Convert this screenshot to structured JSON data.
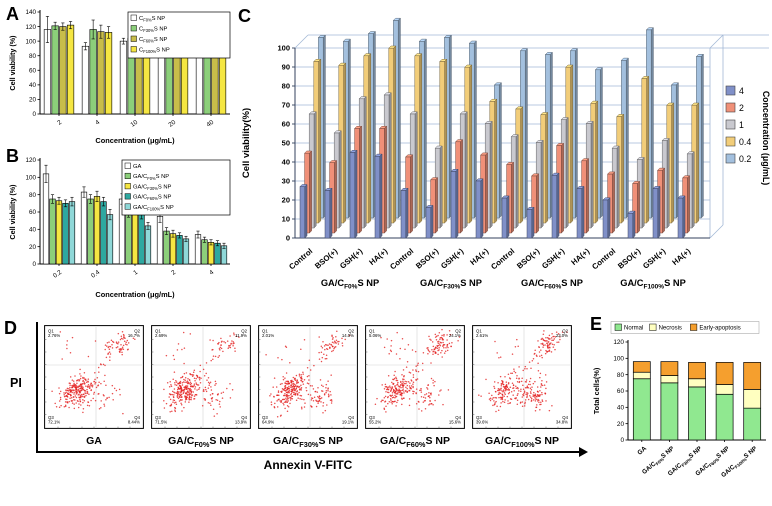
{
  "figure": {
    "background": "#ffffff"
  },
  "chart_data": [
    {
      "panel": "A",
      "type": "bar",
      "xlabel": "Concentration (μg/mL)",
      "ylabel": "Cell viability (%)",
      "ylim": [
        0,
        140
      ],
      "ystep": 20,
      "categories": [
        "2",
        "4",
        "10",
        "20",
        "40"
      ],
      "series": [
        {
          "name": "C~F0%~S NP",
          "color": "#ffffff",
          "values": [
            116,
            93,
            100,
            97,
            87
          ],
          "errors": [
            18,
            5,
            4,
            4,
            4
          ]
        },
        {
          "name": "C~F30%~S NP",
          "color": "#8ccf7a",
          "values": [
            121,
            116,
            104,
            99,
            92
          ],
          "errors": [
            5,
            13,
            6,
            4,
            9
          ]
        },
        {
          "name": "C~F60%~S NP",
          "color": "#c8bd4a",
          "values": [
            120,
            113,
            101,
            98,
            90
          ],
          "errors": [
            5,
            9,
            5,
            4,
            4
          ]
        },
        {
          "name": "C~F100%~S NP",
          "color": "#f5e642",
          "values": [
            122,
            112,
            106,
            100,
            93
          ],
          "errors": [
            5,
            8,
            17,
            5,
            5
          ]
        }
      ]
    },
    {
      "panel": "B",
      "type": "bar",
      "xlabel": "Concentration (μg/mL)",
      "ylabel": "Cell viability (%)",
      "ylim": [
        0,
        120
      ],
      "ystep": 20,
      "categories": [
        "0.2",
        "0.4",
        "1",
        "2",
        "4"
      ],
      "series": [
        {
          "name": "GA",
          "color": "#ffffff",
          "values": [
            104,
            83,
            75,
            55,
            34
          ],
          "errors": [
            10,
            6,
            6,
            7,
            4
          ]
        },
        {
          "name": "GA/C~F0%~S NP",
          "color": "#8ccf7a",
          "values": [
            75,
            75,
            59,
            38,
            28
          ],
          "errors": [
            5,
            5,
            5,
            4,
            3
          ]
        },
        {
          "name": "GA/C~F30%~S NP",
          "color": "#f5e642",
          "values": [
            73,
            78,
            62,
            35,
            25
          ],
          "errors": [
            4,
            6,
            5,
            4,
            3
          ]
        },
        {
          "name": "GA/C~F60%~S NP",
          "color": "#2ea8a0",
          "values": [
            70,
            72,
            57,
            33,
            24
          ],
          "errors": [
            4,
            5,
            5,
            3,
            3
          ]
        },
        {
          "name": "GA/C~F100%~S NP",
          "color": "#8fd8d8",
          "values": [
            72,
            57,
            44,
            29,
            21
          ],
          "errors": [
            5,
            6,
            4,
            3,
            3
          ]
        }
      ]
    },
    {
      "panel": "C",
      "type": "bar3d",
      "ylabel": "Cell viability(%)",
      "legend_title": "Concentration (μg/mL)",
      "ylim": [
        0,
        100
      ],
      "ystep": 10,
      "groups": [
        "GA/C~F0%~S NP",
        "GA/C~F30%~S NP",
        "GA/C~F60%~S NP",
        "GA/C~F100%~S NP"
      ],
      "conditions": [
        "Control",
        "BSO(+)",
        "GSH(+)",
        "HA(+)"
      ],
      "series": [
        {
          "name": "4",
          "color": "#8090c8",
          "values": [
            27,
            25,
            45,
            43,
            25,
            16,
            35,
            30,
            21,
            15,
            33,
            26,
            20,
            13,
            26,
            21
          ]
        },
        {
          "name": "2",
          "color": "#f09078",
          "values": [
            42,
            37,
            55,
            55,
            40,
            28,
            48,
            41,
            36,
            30,
            46,
            38,
            31,
            26,
            33,
            29
          ]
        },
        {
          "name": "1",
          "color": "#c9c9cf",
          "values": [
            60,
            50,
            68,
            70,
            60,
            42,
            60,
            55,
            48,
            45,
            57,
            55,
            42,
            36,
            46,
            39
          ]
        },
        {
          "name": "0.4",
          "color": "#f2cd79",
          "values": [
            85,
            83,
            88,
            92,
            88,
            85,
            82,
            64,
            60,
            57,
            82,
            63,
            56,
            76,
            62,
            62
          ]
        },
        {
          "name": "0.2",
          "color": "#a3c0de",
          "values": [
            95,
            93,
            97,
            104,
            93,
            95,
            92,
            70,
            88,
            86,
            88,
            78,
            83,
            99,
            70,
            85
          ]
        }
      ]
    },
    {
      "panel": "D",
      "type": "scatter",
      "xlabel": "Annexin V-FITC",
      "ylabel": "PI",
      "point_color": "#e32020",
      "quadrant_names": [
        "Q1",
        "Q2",
        "Q3",
        "Q4"
      ],
      "plots": [
        {
          "label": "GA",
          "q1": "2.76%",
          "q2": "16.7%",
          "q3": "72.1%",
          "q4": "8.44%"
        },
        {
          "label": "GA/C~F0%~S NP",
          "q1": "2.69%",
          "q2": "11.9%",
          "q3": "71.5%",
          "q4": "13.9%"
        },
        {
          "label": "GA/C~F30%~S NP",
          "q1": "2.01%",
          "q2": "14.0%",
          "q3": "64.9%",
          "q4": "19.1%"
        },
        {
          "label": "GA/C~F60%~S NP",
          "q1": "5.06%",
          "q2": "24.1%",
          "q3": "55.2%",
          "q4": "15.6%"
        },
        {
          "label": "GA/C~F100%~S NP",
          "q1": "2.61%",
          "q2": "23.0%",
          "q3": "39.6%",
          "q4": "34.8%"
        }
      ]
    },
    {
      "panel": "E",
      "type": "stacked-bar",
      "ylabel": "Total cells(%)",
      "ylim": [
        0,
        120
      ],
      "ystep": 20,
      "categories": [
        "GA",
        "GA/C~F0%~S NP",
        "GA/C~F30%~S NP",
        "GA/C~F60%~S NP",
        "GA/C~F100%~S NP"
      ],
      "series": [
        {
          "name": "Normal",
          "color": "#90e890",
          "values": [
            75,
            70,
            65,
            56,
            39
          ]
        },
        {
          "name": "Necrosis",
          "color": "#ffffc0",
          "values": [
            8,
            9,
            10,
            12,
            23
          ]
        },
        {
          "name": "Early-apoptosis",
          "color": "#f59f2e",
          "values": [
            13,
            17,
            20,
            27,
            33
          ]
        }
      ]
    }
  ]
}
